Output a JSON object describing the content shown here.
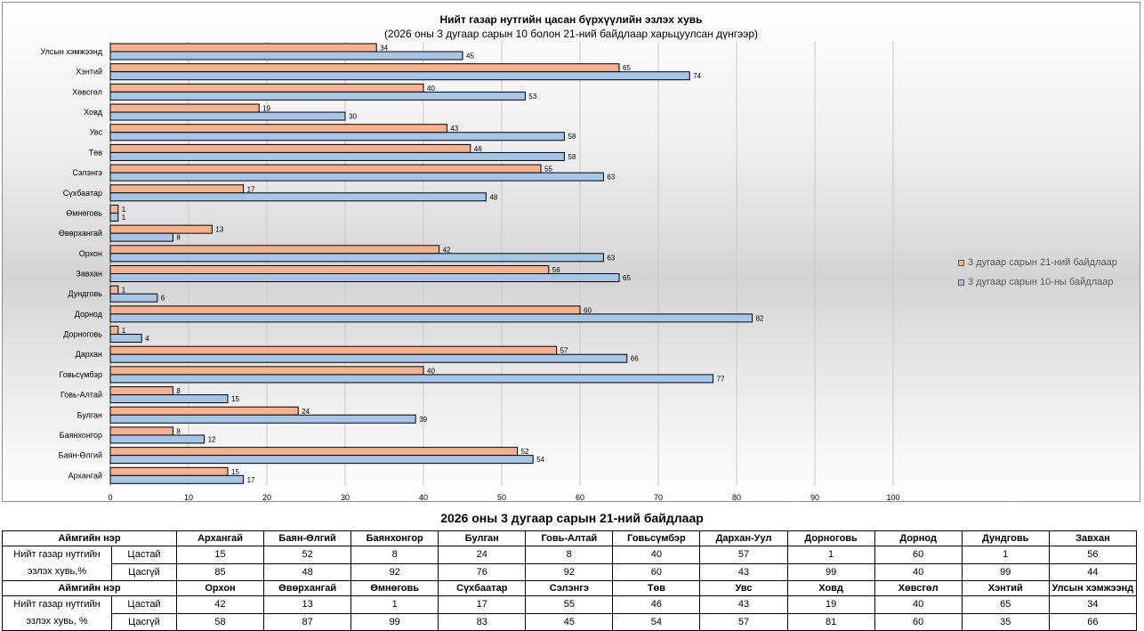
{
  "chart_data": {
    "type": "bar",
    "orientation": "horizontal",
    "title": "Нийт газар нутгийн цасан бүрхүүлийн эзлэх хувь",
    "subtitle": "(2026 оны 3 дугаар сарын 10 болон 21-ний байдлаар харьцуулсан дүнгээр)",
    "categories": [
      "Улсын хэмжээнд",
      "Хэнтий",
      "Хөвсгөл",
      "Ховд",
      "Увс",
      "Төв",
      "Сэлэнгэ",
      "Сүхбаатар",
      "Өмнөговь",
      "Өвөрхангай",
      "Орхон",
      "Завхан",
      "Дундговь",
      "Дорнод",
      "Дорноговь",
      "Дархан",
      "Говьсүмбэр",
      "Говь-Алтай",
      "Булган",
      "Баянхонгор",
      "Баян-Өлгий",
      "Архангай"
    ],
    "series": [
      {
        "name": "3 дугаар сарын 21-ний байдлаар",
        "color": "#f6b28f",
        "values": [
          34,
          65,
          40,
          19,
          43,
          46,
          55,
          17,
          1,
          13,
          42,
          56,
          1,
          60,
          1,
          57,
          40,
          8,
          24,
          8,
          52,
          15
        ]
      },
      {
        "name": "3 дугаар сарын 10-ны байдлаар",
        "color": "#a7c5e7",
        "values": [
          45,
          74,
          53,
          30,
          58,
          58,
          63,
          48,
          1,
          8,
          63,
          65,
          6,
          82,
          4,
          66,
          77,
          15,
          39,
          12,
          54,
          17
        ]
      }
    ],
    "xlim": [
      0,
      100
    ],
    "xticks": [
      0,
      10,
      20,
      30,
      40,
      50,
      60,
      70,
      80,
      90,
      100
    ],
    "grid": true,
    "legend_position": "right"
  },
  "table": {
    "title": "2026 оны 3 дугаар сарын 21-ний байдлаар",
    "header_label": "Аймгийн нэр",
    "row_label_a": "Нийт газар нутгийн эзлэх хувь,%",
    "row_label_b": "Нийт газар нутгийн эзлэх хувь, %",
    "snow_label": "Цастай",
    "nosnow_label": "Цасгүй",
    "block1": {
      "names": [
        "Архангай",
        "Баян-Өлгий",
        "Баянхонгор",
        "Булган",
        "Говь-Алтай",
        "Говьсүмбэр",
        "Дархан-Уул",
        "Дорноговь",
        "Дорнод",
        "Дундговь",
        "Завхан"
      ],
      "snow": [
        "15",
        "52",
        "8",
        "24",
        "8",
        "40",
        "57",
        "1",
        "60",
        "1",
        "56"
      ],
      "nosnow": [
        "85",
        "48",
        "92",
        "76",
        "92",
        "60",
        "43",
        "99",
        "40",
        "99",
        "44"
      ]
    },
    "block2": {
      "names": [
        "Орхон",
        "Өвөрхангай",
        "Өмнөговь",
        "Сүхбаатар",
        "Сэлэнгэ",
        "Төв",
        "Увс",
        "Ховд",
        "Хөвсгөл",
        "Хэнтий",
        "Улсын хэмжээнд"
      ],
      "snow": [
        "42",
        "13",
        "1",
        "17",
        "55",
        "46",
        "43",
        "19",
        "40",
        "65",
        "34"
      ],
      "nosnow": [
        "58",
        "87",
        "99",
        "83",
        "45",
        "54",
        "57",
        "81",
        "60",
        "35",
        "66"
      ]
    }
  }
}
